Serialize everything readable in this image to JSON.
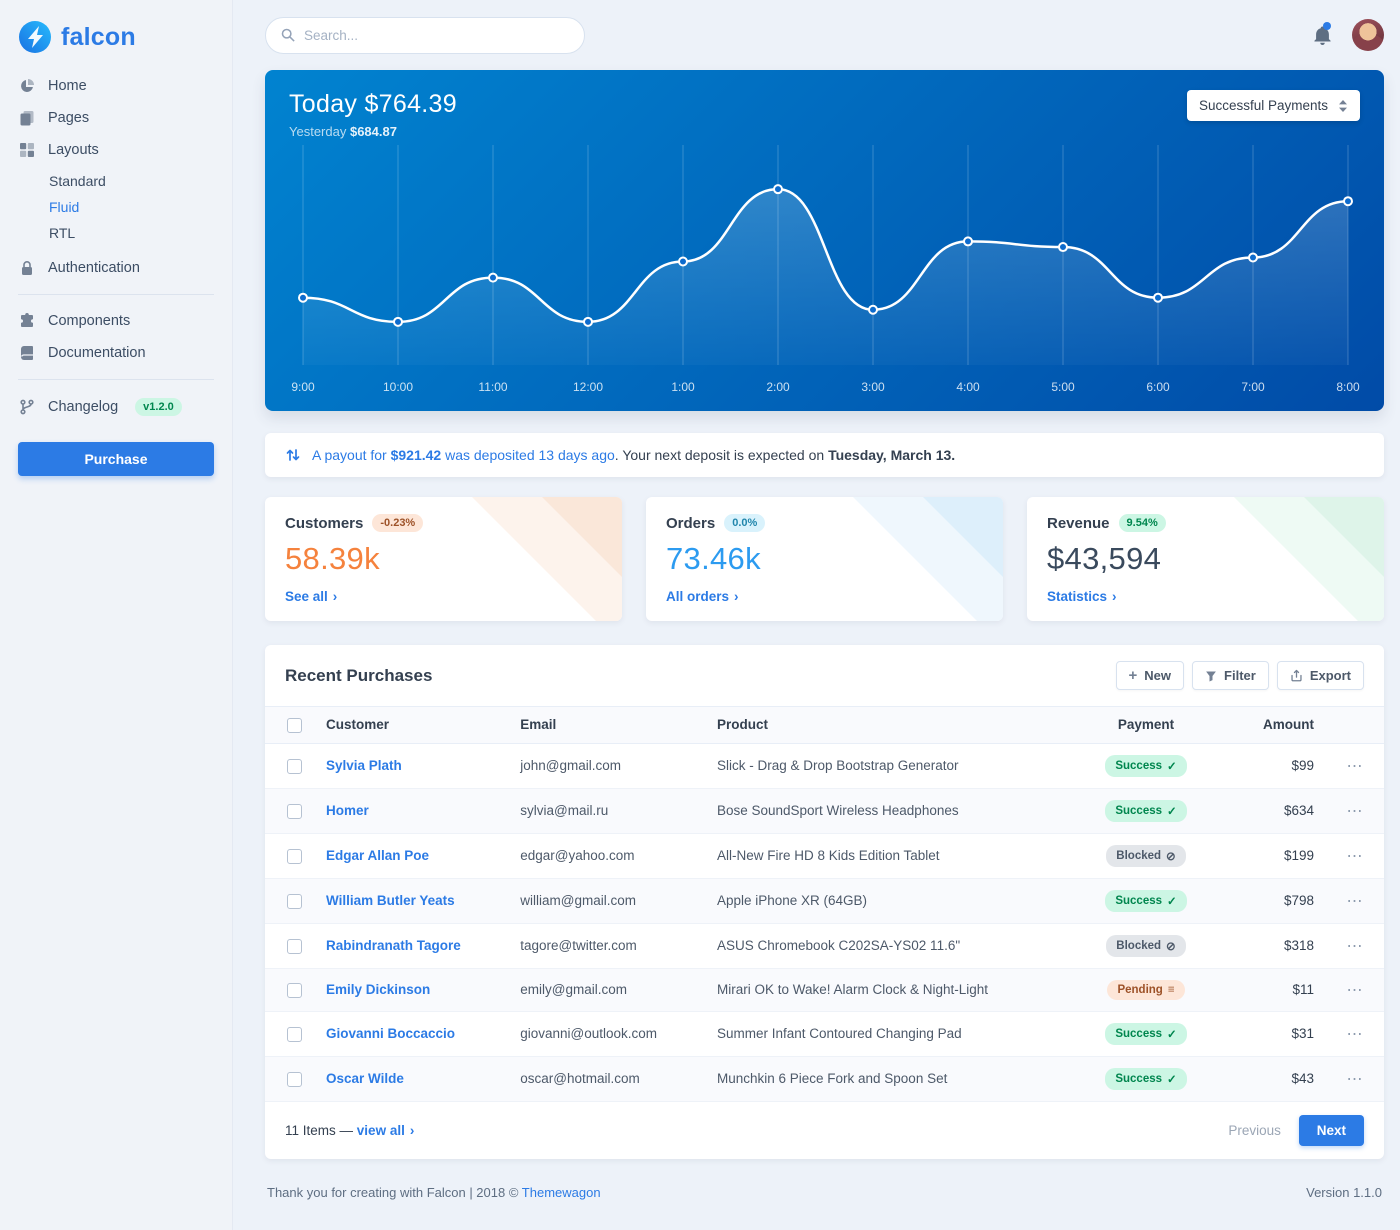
{
  "palette": {
    "primary": "#2c7be5",
    "success": "#00d27a",
    "warning": "#f5803e",
    "info": "#27bcfd",
    "dark_text": "#344050",
    "page_bg": "#edf2f9",
    "chart_gradient": [
      "#014ba7",
      "#0183d0"
    ]
  },
  "brand": {
    "name": "falcon"
  },
  "sidebar": {
    "items": [
      {
        "label": "Home",
        "icon": "pie-chart-icon"
      },
      {
        "label": "Pages",
        "icon": "pages-icon"
      },
      {
        "label": "Layouts",
        "icon": "grid-icon",
        "children": [
          {
            "label": "Standard"
          },
          {
            "label": "Fluid",
            "active": true
          },
          {
            "label": "RTL"
          }
        ]
      },
      {
        "label": "Authentication",
        "icon": "lock-icon"
      },
      {
        "label": "Components",
        "icon": "puzzle-icon"
      },
      {
        "label": "Documentation",
        "icon": "book-icon"
      },
      {
        "label": "Changelog",
        "icon": "code-branch-icon",
        "badge": "v1.2.0"
      }
    ],
    "purchase_label": "Purchase"
  },
  "topbar": {
    "search_placeholder": "Search..."
  },
  "payments_card": {
    "today": "Today $764.39",
    "yesterday_label": "Yesterday",
    "yesterday_value": "$684.87",
    "select_value": "Successful Payments"
  },
  "chart_data": {
    "type": "line",
    "title": "Today $764.39",
    "x": [
      "9:00",
      "10:00",
      "11:00",
      "12:00",
      "1:00",
      "2:00",
      "3:00",
      "4:00",
      "5:00",
      "6:00",
      "7:00",
      "8:00"
    ],
    "series": [
      {
        "name": "Successful Payments",
        "values": [
          75,
          45,
          100,
          45,
          120,
          210,
          60,
          145,
          138,
          75,
          125,
          195
        ]
      }
    ],
    "ylim": [
      0,
      250
    ],
    "grid": "vertical-only",
    "legend": "none",
    "line_color": "#ffffff"
  },
  "payout_alert": {
    "prefix_link": "A payout for ",
    "amount": "$921.42",
    "suffix_link": " was deposited 13 days ago",
    "middle": ". Your next deposit is expected on ",
    "date": "Tuesday, March 13."
  },
  "stats": [
    {
      "title": "Customers",
      "badge": "-0.23%",
      "value": "58.39k",
      "link": "See all"
    },
    {
      "title": "Orders",
      "badge": "0.0%",
      "value": "73.46k",
      "link": "All orders"
    },
    {
      "title": "Revenue",
      "badge": "9.54%",
      "value": "$43,594",
      "link": "Statistics"
    }
  ],
  "purchases": {
    "title": "Recent Purchases",
    "buttons": {
      "new": "New",
      "filter": "Filter",
      "export": "Export"
    },
    "headers": [
      "Customer",
      "Email",
      "Product",
      "Payment",
      "Amount"
    ],
    "rows": [
      {
        "customer": "Sylvia Plath",
        "email": "john@gmail.com",
        "product": "Slick - Drag & Drop Bootstrap Generator",
        "payment": "Success",
        "amount": "$99"
      },
      {
        "customer": "Homer",
        "email": "sylvia@mail.ru",
        "product": "Bose SoundSport Wireless Headphones",
        "payment": "Success",
        "amount": "$634"
      },
      {
        "customer": "Edgar Allan Poe",
        "email": "edgar@yahoo.com",
        "product": "All-New Fire HD 8 Kids Edition Tablet",
        "payment": "Blocked",
        "amount": "$199"
      },
      {
        "customer": "William Butler Yeats",
        "email": "william@gmail.com",
        "product": "Apple iPhone XR (64GB)",
        "payment": "Success",
        "amount": "$798"
      },
      {
        "customer": "Rabindranath Tagore",
        "email": "tagore@twitter.com",
        "product": "ASUS Chromebook C202SA-YS02 11.6\"",
        "payment": "Blocked",
        "amount": "$318"
      },
      {
        "customer": "Emily Dickinson",
        "email": "emily@gmail.com",
        "product": "Mirari OK to Wake! Alarm Clock & Night-Light",
        "payment": "Pending",
        "amount": "$11"
      },
      {
        "customer": "Giovanni Boccaccio",
        "email": "giovanni@outlook.com",
        "product": "Summer Infant Contoured Changing Pad",
        "payment": "Success",
        "amount": "$31"
      },
      {
        "customer": "Oscar Wilde",
        "email": "oscar@hotmail.com",
        "product": "Munchkin 6 Piece Fork and Spoon Set",
        "payment": "Success",
        "amount": "$43"
      }
    ],
    "footer": {
      "items_text": "11 Items —",
      "view_all": "view all",
      "previous": "Previous",
      "next": "Next"
    }
  },
  "footer": {
    "left_text": "Thank you for creating with Falcon | 2018 © ",
    "link": "Themewagon",
    "version": "Version 1.1.0"
  }
}
